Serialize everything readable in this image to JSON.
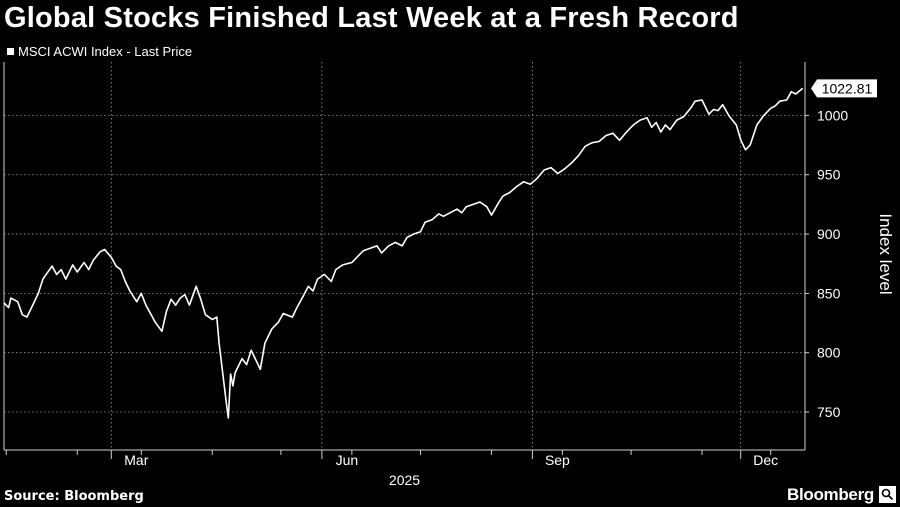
{
  "title": "Global Stocks Finished Last Week at a Fresh Record",
  "legend": {
    "label": "MSCI ACWI Index - Last Price",
    "icon": "square-legend-icon"
  },
  "source": "Source: Bloomberg",
  "brand": "Bloomberg",
  "colors": {
    "background": "#000000",
    "line": "#ffffff",
    "grid": "#9a9a9a"
  },
  "chart_data": {
    "type": "line",
    "ylabel": "Index level",
    "xlabel": "2025",
    "ylim": [
      718,
      1045
    ],
    "y_ticks": [
      750,
      800,
      850,
      900,
      950,
      1000
    ],
    "x_range": [
      "2024-12-31",
      "2025-12-16"
    ],
    "x_ticks": [
      {
        "label": "Mar",
        "date": "2025-03-01"
      },
      {
        "label": "Jun",
        "date": "2025-06-01"
      },
      {
        "label": "Sep",
        "date": "2025-09-01"
      },
      {
        "label": "Dec",
        "date": "2025-12-01"
      }
    ],
    "grid": true,
    "last_value_label": "1022.81",
    "series": [
      {
        "values": [
          [
            "2024-12-31",
            842
          ],
          [
            "2025-01-02",
            838
          ],
          [
            "2025-01-03",
            846
          ],
          [
            "2025-01-06",
            843
          ],
          [
            "2025-01-08",
            832
          ],
          [
            "2025-01-10",
            830
          ],
          [
            "2025-01-13",
            842
          ],
          [
            "2025-01-15",
            850
          ],
          [
            "2025-01-17",
            862
          ],
          [
            "2025-01-21",
            873
          ],
          [
            "2025-01-23",
            866
          ],
          [
            "2025-01-25",
            870
          ],
          [
            "2025-01-27",
            862
          ],
          [
            "2025-01-30",
            874
          ],
          [
            "2025-02-01",
            868
          ],
          [
            "2025-02-04",
            876
          ],
          [
            "2025-02-06",
            870
          ],
          [
            "2025-02-08",
            878
          ],
          [
            "2025-02-11",
            885
          ],
          [
            "2025-02-13",
            887
          ],
          [
            "2025-02-16",
            880
          ],
          [
            "2025-02-18",
            873
          ],
          [
            "2025-02-20",
            870
          ],
          [
            "2025-02-22",
            860
          ],
          [
            "2025-02-24",
            852
          ],
          [
            "2025-02-27",
            843
          ],
          [
            "2025-03-01",
            850
          ],
          [
            "2025-03-03",
            840
          ],
          [
            "2025-03-05",
            833
          ],
          [
            "2025-03-07",
            826
          ],
          [
            "2025-03-10",
            818
          ],
          [
            "2025-03-12",
            835
          ],
          [
            "2025-03-14",
            845
          ],
          [
            "2025-03-16",
            840
          ],
          [
            "2025-03-18",
            846
          ],
          [
            "2025-03-20",
            849
          ],
          [
            "2025-03-22",
            840
          ],
          [
            "2025-03-25",
            856
          ],
          [
            "2025-03-27",
            845
          ],
          [
            "2025-03-29",
            832
          ],
          [
            "2025-04-01",
            828
          ],
          [
            "2025-04-03",
            830
          ],
          [
            "2025-04-04",
            808
          ],
          [
            "2025-04-07",
            760
          ],
          [
            "2025-04-08",
            745
          ],
          [
            "2025-04-09",
            782
          ],
          [
            "2025-04-10",
            772
          ],
          [
            "2025-04-11",
            783
          ],
          [
            "2025-04-14",
            795
          ],
          [
            "2025-04-16",
            790
          ],
          [
            "2025-04-18",
            802
          ],
          [
            "2025-04-22",
            786
          ],
          [
            "2025-04-24",
            808
          ],
          [
            "2025-04-27",
            820
          ],
          [
            "2025-04-30",
            826
          ],
          [
            "2025-05-02",
            833
          ],
          [
            "2025-05-06",
            830
          ],
          [
            "2025-05-08",
            838
          ],
          [
            "2025-05-10",
            845
          ],
          [
            "2025-05-13",
            856
          ],
          [
            "2025-05-15",
            852
          ],
          [
            "2025-05-17",
            862
          ],
          [
            "2025-05-20",
            866
          ],
          [
            "2025-05-23",
            860
          ],
          [
            "2025-05-25",
            870
          ],
          [
            "2025-05-28",
            874
          ],
          [
            "2025-06-01",
            876
          ],
          [
            "2025-06-03",
            880
          ],
          [
            "2025-06-06",
            886
          ],
          [
            "2025-06-09",
            888
          ],
          [
            "2025-06-12",
            890
          ],
          [
            "2025-06-14",
            884
          ],
          [
            "2025-06-17",
            890
          ],
          [
            "2025-06-20",
            893
          ],
          [
            "2025-06-23",
            890
          ],
          [
            "2025-06-25",
            897
          ],
          [
            "2025-06-28",
            900
          ],
          [
            "2025-07-01",
            902
          ],
          [
            "2025-07-03",
            910
          ],
          [
            "2025-07-06",
            912
          ],
          [
            "2025-07-09",
            917
          ],
          [
            "2025-07-11",
            915
          ],
          [
            "2025-07-14",
            918
          ],
          [
            "2025-07-17",
            921
          ],
          [
            "2025-07-19",
            918
          ],
          [
            "2025-07-21",
            923
          ],
          [
            "2025-07-24",
            925
          ],
          [
            "2025-07-27",
            927
          ],
          [
            "2025-07-30",
            923
          ],
          [
            "2025-08-01",
            916
          ],
          [
            "2025-08-04",
            926
          ],
          [
            "2025-08-06",
            932
          ],
          [
            "2025-08-09",
            935
          ],
          [
            "2025-08-12",
            940
          ],
          [
            "2025-08-15",
            944
          ],
          [
            "2025-08-18",
            942
          ],
          [
            "2025-08-21",
            947
          ],
          [
            "2025-08-24",
            954
          ],
          [
            "2025-08-27",
            956
          ],
          [
            "2025-08-30",
            951
          ],
          [
            "2025-09-02",
            955
          ],
          [
            "2025-09-05",
            960
          ],
          [
            "2025-09-08",
            966
          ],
          [
            "2025-09-11",
            974
          ],
          [
            "2025-09-14",
            977
          ],
          [
            "2025-09-17",
            978
          ],
          [
            "2025-09-20",
            983
          ],
          [
            "2025-09-23",
            985
          ],
          [
            "2025-09-26",
            979
          ],
          [
            "2025-09-29",
            986
          ],
          [
            "2025-10-02",
            992
          ],
          [
            "2025-10-05",
            996
          ],
          [
            "2025-10-08",
            998
          ],
          [
            "2025-10-10",
            990
          ],
          [
            "2025-10-12",
            994
          ],
          [
            "2025-10-14",
            986
          ],
          [
            "2025-10-16",
            992
          ],
          [
            "2025-10-18",
            988
          ],
          [
            "2025-10-21",
            996
          ],
          [
            "2025-10-24",
            999
          ],
          [
            "2025-10-27",
            1006
          ],
          [
            "2025-10-29",
            1012
          ],
          [
            "2025-11-01",
            1013
          ],
          [
            "2025-11-04",
            1001
          ],
          [
            "2025-11-06",
            1005
          ],
          [
            "2025-11-08",
            1004
          ],
          [
            "2025-11-10",
            1009
          ],
          [
            "2025-11-13",
            999
          ],
          [
            "2025-11-16",
            992
          ],
          [
            "2025-11-18",
            979
          ],
          [
            "2025-11-20",
            971
          ],
          [
            "2025-11-22",
            975
          ],
          [
            "2025-11-25",
            992
          ],
          [
            "2025-11-28",
            1000
          ],
          [
            "2025-12-01",
            1006
          ],
          [
            "2025-12-03",
            1008
          ],
          [
            "2025-12-05",
            1012
          ],
          [
            "2025-12-08",
            1013
          ],
          [
            "2025-12-10",
            1020
          ],
          [
            "2025-12-12",
            1018
          ],
          [
            "2025-12-15",
            1022.81
          ]
        ]
      }
    ]
  }
}
